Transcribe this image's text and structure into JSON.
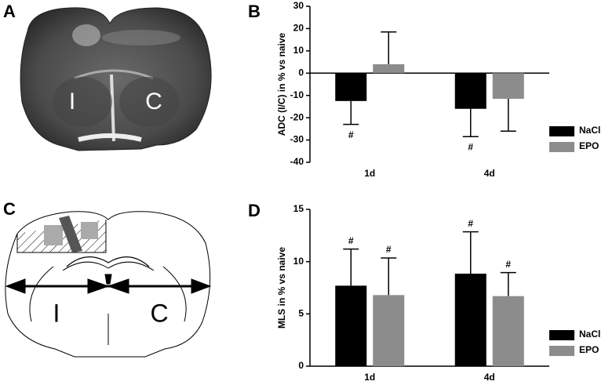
{
  "panel_labels": [
    "A",
    "B",
    "C",
    "D"
  ],
  "mri_labels": [
    "I",
    "C"
  ],
  "diagram_labels": [
    "I",
    "C"
  ],
  "chart_data": [
    {
      "type": "bar",
      "y_label": "ADC (I/C) in % vs naive",
      "categories": [
        "1d",
        "4d"
      ],
      "series": [
        {
          "name": "NaCl",
          "color": "#000000",
          "values": [
            -12.5,
            -16
          ],
          "errors": [
            10.5,
            12.5
          ],
          "significance": [
            "#",
            "#"
          ]
        },
        {
          "name": "EPO",
          "color": "#8c8c8c",
          "values": [
            4,
            -11.5
          ],
          "errors": [
            14.5,
            14.5
          ],
          "significance": [
            null,
            null
          ]
        }
      ],
      "ylim": [
        -40,
        30
      ],
      "yticks": [
        -40,
        -30,
        -20,
        -10,
        0,
        10,
        20,
        30
      ],
      "legend": "lower right"
    },
    {
      "type": "bar",
      "y_label": "MLS in % vs naive",
      "categories": [
        "1d",
        "4d"
      ],
      "series": [
        {
          "name": "NaCl",
          "color": "#000000",
          "values": [
            7.7,
            8.85
          ],
          "errors": [
            3.5,
            4.0
          ],
          "significance": [
            "#",
            "#"
          ]
        },
        {
          "name": "EPO",
          "color": "#8c8c8c",
          "values": [
            6.8,
            6.7
          ],
          "errors": [
            3.55,
            2.25
          ],
          "significance": [
            "#",
            "#"
          ]
        }
      ],
      "ylim": [
        0,
        15
      ],
      "yticks": [
        0,
        5,
        10,
        15
      ],
      "legend": "lower right"
    }
  ]
}
